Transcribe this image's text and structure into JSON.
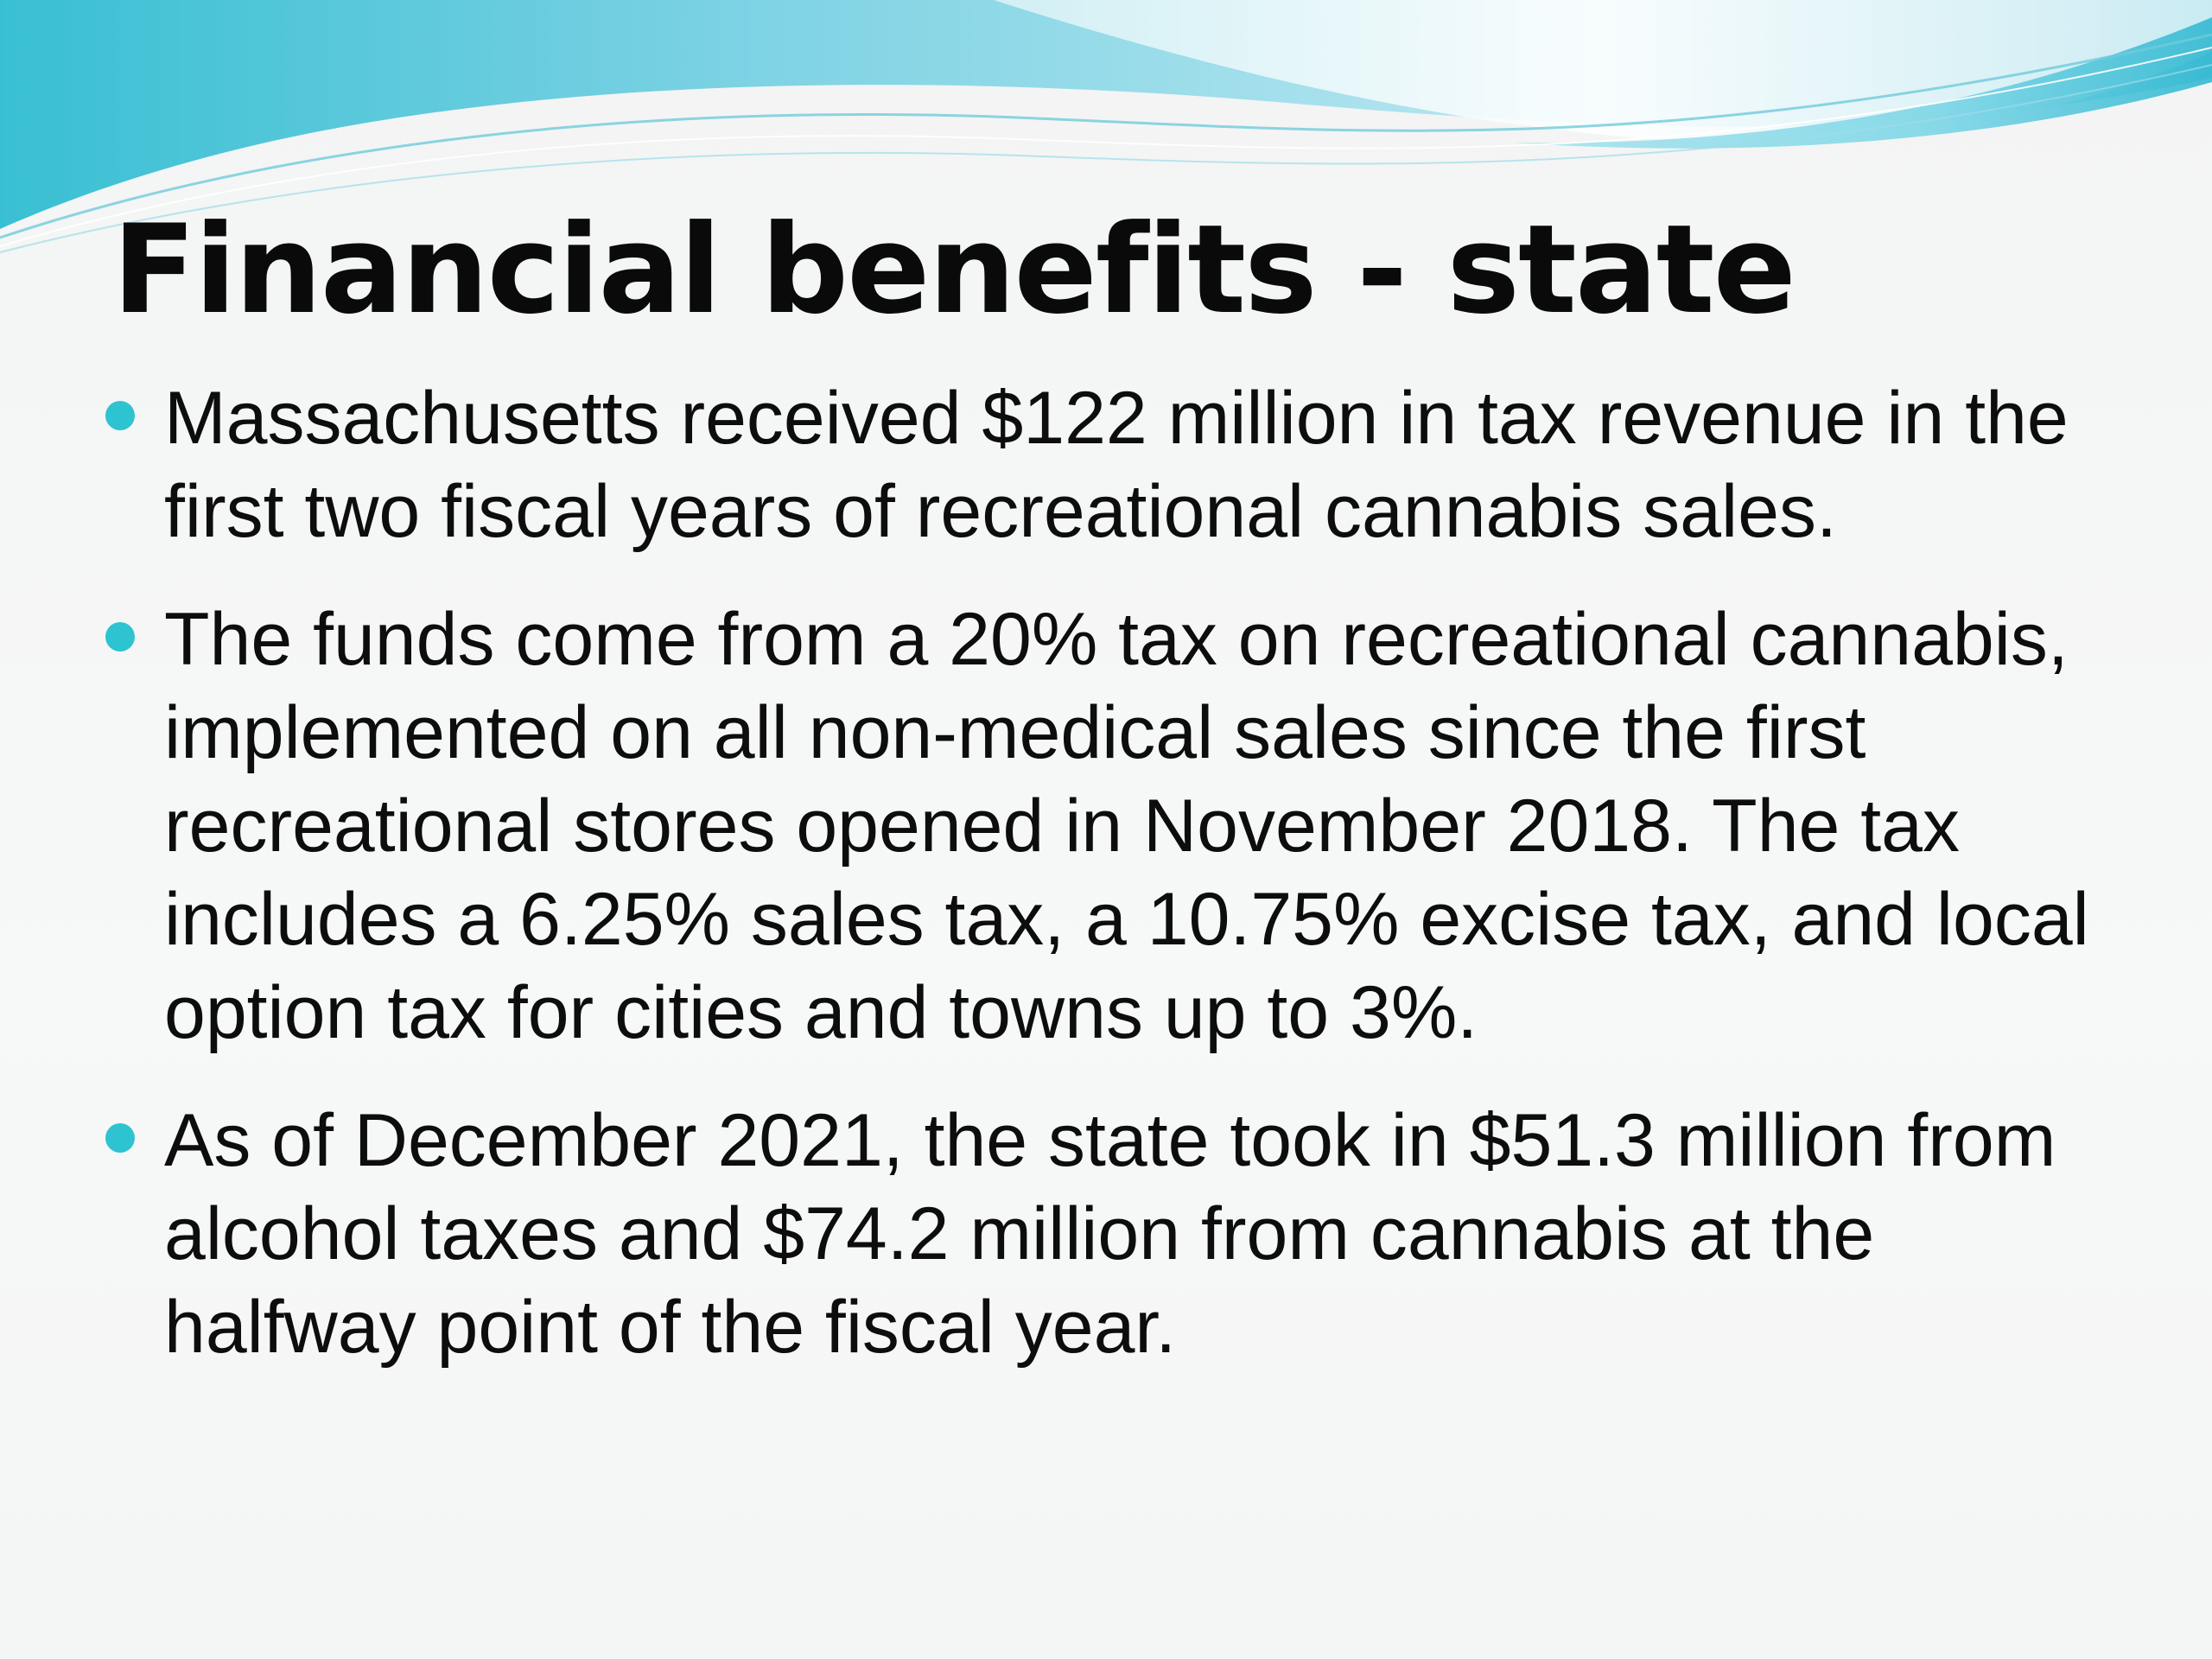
{
  "slide": {
    "title": "Financial benefits - state",
    "bullet_color": "#2ec3d0",
    "bullets": [
      {
        "text": "Massachusetts received $122 million in tax revenue in the first two fiscal years of recreational cannabis sales."
      },
      {
        "text": "The funds come from a 20% tax on recreational cannabis, implemented on all non-medical sales since the first recreational stores opened in November 2018. The tax includes a 6.25% sales tax, a 10.75% excise tax, and local option tax for cities and towns up to 3%."
      },
      {
        "text": "As of December 2021, the state took in $51.3 million from alcohol taxes and $74.2 million from cannabis at the halfway point of the fiscal year."
      }
    ]
  },
  "theme": {
    "wave_colors": [
      "#3fc6d8",
      "#8fdbe8",
      "#c8eef4"
    ]
  }
}
